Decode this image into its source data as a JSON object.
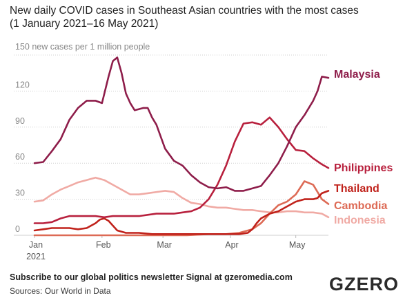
{
  "header": {
    "title": "New daily COVID cases in Southeast Asian countries with the most cases",
    "subtitle": "(1 January 2021–16 May 2021)"
  },
  "footer": {
    "subscribe": "Subscribe to our global politics newsletter Signal at gzeromedia.com",
    "sources": "Sources: Our World in Data",
    "logo": "GZERO"
  },
  "chart_data": {
    "type": "line",
    "ylabel": "150 new cases per 1 million people",
    "ylim": [
      0,
      150
    ],
    "yticks": [
      0,
      30,
      60,
      90,
      120
    ],
    "xlim": [
      0,
      135
    ],
    "xticks": [
      {
        "pos": 0,
        "label": "Jan",
        "sublabel": "2021"
      },
      {
        "pos": 31,
        "label": "Feb",
        "sublabel": ""
      },
      {
        "pos": 59,
        "label": "Mar",
        "sublabel": ""
      },
      {
        "pos": 90,
        "label": "Apr",
        "sublabel": ""
      },
      {
        "pos": 120,
        "label": "May",
        "sublabel": ""
      }
    ],
    "series": [
      {
        "name": "Indonesia",
        "color": "#f0aaa4",
        "x": [
          0,
          4,
          8,
          12,
          16,
          20,
          24,
          28,
          32,
          36,
          40,
          44,
          48,
          52,
          56,
          60,
          64,
          68,
          72,
          76,
          80,
          84,
          88,
          92,
          96,
          100,
          104,
          108,
          112,
          116,
          120,
          124,
          128,
          132,
          135
        ],
        "y": [
          28,
          29,
          34,
          38,
          41,
          44,
          46,
          48,
          46,
          42,
          38,
          34,
          34,
          35,
          36,
          37,
          36,
          31,
          27,
          26,
          24,
          23,
          23,
          22,
          21,
          21,
          20,
          19,
          19,
          20,
          20,
          19,
          19,
          18,
          15
        ]
      },
      {
        "name": "Cambodia",
        "color": "#dd6a55",
        "x": [
          0,
          10,
          20,
          30,
          40,
          50,
          60,
          70,
          80,
          88,
          94,
          100,
          104,
          108,
          112,
          116,
          120,
          124,
          128,
          132,
          135
        ],
        "y": [
          0,
          0,
          0,
          0,
          0,
          0,
          0,
          0,
          1,
          1,
          2,
          5,
          10,
          18,
          25,
          28,
          34,
          45,
          42,
          30,
          26
        ]
      },
      {
        "name": "Thailand",
        "color": "#c0221b",
        "x": [
          0,
          4,
          8,
          12,
          16,
          20,
          24,
          28,
          30,
          32,
          34,
          36,
          38,
          42,
          48,
          54,
          60,
          66,
          72,
          78,
          84,
          90,
          94,
          98,
          100,
          102,
          104,
          108,
          112,
          116,
          120,
          124,
          128,
          130,
          132,
          135
        ],
        "y": [
          4,
          5,
          6,
          6,
          6,
          5,
          6,
          10,
          13,
          14,
          12,
          8,
          4,
          2,
          2,
          1,
          1,
          1,
          1,
          1,
          1,
          1,
          1,
          2,
          5,
          10,
          14,
          18,
          20,
          24,
          28,
          30,
          30,
          31,
          35,
          37
        ]
      },
      {
        "name": "Philippines",
        "color": "#b8203d",
        "x": [
          0,
          4,
          8,
          12,
          16,
          20,
          24,
          28,
          32,
          36,
          40,
          44,
          48,
          52,
          56,
          60,
          64,
          68,
          72,
          76,
          80,
          84,
          88,
          92,
          96,
          100,
          104,
          108,
          112,
          116,
          120,
          124,
          128,
          132,
          135
        ],
        "y": [
          10,
          10,
          11,
          14,
          16,
          16,
          16,
          16,
          15,
          16,
          16,
          16,
          16,
          17,
          18,
          18,
          18,
          19,
          20,
          23,
          30,
          42,
          58,
          78,
          93,
          94,
          92,
          98,
          90,
          80,
          71,
          70,
          64,
          59,
          56
        ]
      },
      {
        "name": "Malaysia",
        "color": "#8e1d4a",
        "x": [
          0,
          4,
          8,
          12,
          16,
          20,
          24,
          28,
          31,
          34,
          36,
          38,
          40,
          42,
          44,
          46,
          48,
          50,
          52,
          54,
          56,
          58,
          60,
          64,
          68,
          72,
          76,
          80,
          84,
          88,
          92,
          96,
          100,
          104,
          108,
          112,
          116,
          120,
          124,
          128,
          130,
          132,
          135
        ],
        "y": [
          60,
          61,
          70,
          80,
          96,
          106,
          112,
          112,
          110,
          132,
          145,
          148,
          135,
          118,
          110,
          104,
          105,
          106,
          106,
          98,
          92,
          82,
          72,
          62,
          58,
          50,
          44,
          40,
          39,
          40,
          37,
          37,
          39,
          41,
          50,
          60,
          74,
          90,
          100,
          112,
          120,
          132,
          131
        ]
      }
    ]
  }
}
